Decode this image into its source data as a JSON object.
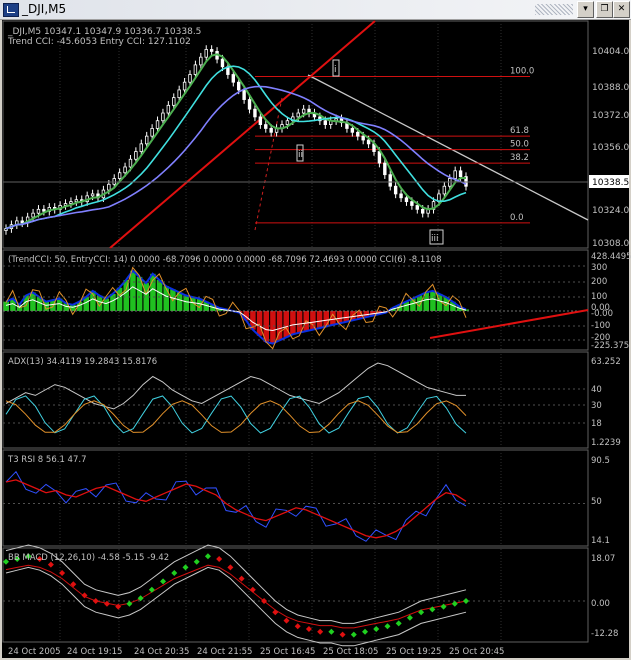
{
  "window": {
    "title": "_DJI,M5"
  },
  "titlebar": {
    "min_icon": "minimize-icon",
    "restore_icon": "restore-icon",
    "close_icon": "close-icon",
    "dropdown_icon": "chevron-down-icon"
  },
  "colors": {
    "bg": "#000000",
    "grid": "#333333",
    "fg": "#c0c0c0",
    "bull": "#ffffff",
    "bear": "#ffffff"
  },
  "main": {
    "header_line1": "_DJI,M5  10347.1 10347.9 10336.7 10338.5",
    "header_line2": "Trend CCI: -45.6053 Entry CCI: 127.1102",
    "price_ticks": [
      "10404.0",
      "10388.0",
      "10372.0",
      "10356.0",
      "10324.0",
      "10308.0"
    ],
    "current_price": "10338.5",
    "fib_labels": [
      "100.0",
      "61.8",
      "50.0",
      "38.2",
      "0.0"
    ],
    "wave_labels": [
      "i",
      "ii",
      "iii"
    ]
  },
  "cci": {
    "header": "(TrendCCI: 50, EntryCCI: 14)  0.0000 -68.7096 0.0000 0.0000 -68.7096 72.4693 0.0000  CCI(6) -8.1108",
    "ticks": [
      "428.4495",
      "300",
      "200",
      "100",
      "0.00",
      "-0.00",
      "-100",
      "-200",
      "-225.375"
    ]
  },
  "adx": {
    "header": "ADX(13) 34.4119 19.2843 15.8176",
    "ticks": [
      "63.252",
      "40",
      "30",
      "18",
      "1.2239"
    ]
  },
  "rsi": {
    "header": "T3 RSI 8 56.1 47.7",
    "ticks": [
      "90.5",
      "50",
      "14.1"
    ]
  },
  "macd": {
    "header": "BB MACD (12,26,10) -4.58 -5.15 -9.42",
    "ticks": [
      "18.07",
      "0.00",
      "-12.28"
    ]
  },
  "time_labels": [
    "24 Oct 2005",
    "24 Oct 19:15",
    "24 Oct 20:35",
    "24 Oct 21:55",
    "25 Oct 16:45",
    "25 Oct 18:05",
    "25 Oct 19:25",
    "25 Oct 20:45"
  ],
  "chart_data": {
    "type": "line",
    "title": "_DJI,M5",
    "price_range": [
      10308.0,
      10416.0
    ],
    "price_series": [
      10316,
      10318,
      10320,
      10319,
      10322,
      10324,
      10326,
      10325,
      10327,
      10326,
      10328,
      10329,
      10330,
      10331,
      10330,
      10333,
      10334,
      10332,
      10336,
      10339,
      10342,
      10345,
      10348,
      10352,
      10356,
      10360,
      10364,
      10368,
      10372,
      10376,
      10380,
      10384,
      10388,
      10392,
      10396,
      10401,
      10405,
      10409,
      10408,
      10404,
      10400,
      10396,
      10392,
      10388,
      10383,
      10378,
      10374,
      10370,
      10368,
      10366,
      10368,
      10370,
      10372,
      10374,
      10376,
      10378,
      10376,
      10374,
      10372,
      10370,
      10372,
      10373,
      10371,
      10368,
      10366,
      10364,
      10362,
      10360,
      10356,
      10350,
      10344,
      10338,
      10334,
      10332,
      10330,
      10328,
      10326,
      10324,
      10326,
      10330,
      10334,
      10338,
      10342,
      10346,
      10343,
      10338
    ],
    "cci_series": [
      60,
      80,
      40,
      100,
      120,
      90,
      60,
      70,
      80,
      50,
      40,
      60,
      90,
      130,
      100,
      80,
      110,
      150,
      200,
      260,
      220,
      180,
      240,
      200,
      160,
      140,
      120,
      100,
      90,
      80,
      60,
      40,
      20,
      10,
      0,
      -10,
      -60,
      -120,
      -160,
      -200,
      -210,
      -190,
      -170,
      -150,
      -140,
      -130,
      -120,
      -110,
      -100,
      -90,
      -80,
      -70,
      -60,
      -50,
      -40,
      -30,
      -20,
      -10,
      20,
      40,
      60,
      80,
      100,
      120,
      130,
      110,
      90,
      60,
      30,
      10
    ],
    "adx_series": [
      30,
      34,
      38,
      36,
      40,
      44,
      42,
      38,
      34,
      30,
      28,
      26,
      30,
      36,
      44,
      50,
      46,
      40,
      36,
      32,
      30,
      34,
      38,
      42,
      46,
      50,
      48,
      44,
      40,
      36,
      34,
      32,
      30,
      34,
      38,
      44,
      50,
      56,
      60,
      58,
      54,
      50,
      46,
      42,
      40,
      38,
      36,
      36
    ],
    "rsi_series": [
      70,
      72,
      68,
      64,
      60,
      62,
      58,
      56,
      60,
      64,
      66,
      62,
      58,
      54,
      52,
      56,
      60,
      64,
      68,
      66,
      62,
      58,
      50,
      44,
      40,
      36,
      34,
      38,
      42,
      46,
      44,
      40,
      36,
      32,
      28,
      24,
      20,
      18,
      20,
      24,
      30,
      38,
      46,
      54,
      60,
      58,
      52
    ],
    "macd_series": [
      14,
      15,
      16,
      15,
      13,
      10,
      6,
      2,
      0,
      -1,
      -2,
      -1,
      1,
      4,
      7,
      10,
      12,
      14,
      16,
      15,
      12,
      8,
      4,
      0,
      -4,
      -7,
      -9,
      -10,
      -11,
      -11,
      -12,
      -12,
      -11,
      -10,
      -9,
      -8,
      -6,
      -4,
      -3,
      -2,
      -1,
      0
    ],
    "fib_levels": [
      {
        "label": "100.0",
        "value": 10395
      },
      {
        "label": "61.8",
        "value": 10364
      },
      {
        "label": "50.0",
        "value": 10357
      },
      {
        "label": "38.2",
        "value": 10350
      },
      {
        "label": "0.0",
        "value": 10319
      }
    ],
    "time_labels": [
      "24 Oct 2005",
      "24 Oct 19:15",
      "24 Oct 20:35",
      "24 Oct 21:55",
      "25 Oct 16:45",
      "25 Oct 18:05",
      "25 Oct 19:25",
      "25 Oct 20:45"
    ]
  }
}
